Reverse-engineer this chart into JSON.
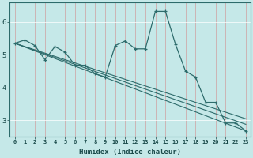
{
  "title": "",
  "xlabel": "Humidex (Indice chaleur)",
  "bg_color": "#c5e8e8",
  "grid_color": "#b0d8d8",
  "line_color": "#2d6b6b",
  "marker_color": "#2d6b6b",
  "xlim": [
    -0.5,
    23.5
  ],
  "ylim": [
    2.5,
    6.6
  ],
  "yticks": [
    3,
    4,
    5,
    6
  ],
  "xticks": [
    0,
    1,
    2,
    3,
    4,
    5,
    6,
    7,
    8,
    9,
    10,
    11,
    12,
    13,
    14,
    15,
    16,
    17,
    18,
    19,
    20,
    21,
    22,
    23
  ],
  "series1_x": [
    0,
    1,
    2,
    3,
    4,
    5,
    6,
    7,
    8,
    9,
    10,
    11,
    12,
    13,
    14,
    15,
    16,
    17,
    18,
    19,
    20,
    21,
    22,
    23
  ],
  "series1_y": [
    5.35,
    5.45,
    5.28,
    4.85,
    5.25,
    5.08,
    4.68,
    4.68,
    4.42,
    4.32,
    5.28,
    5.42,
    5.18,
    5.18,
    6.32,
    6.32,
    5.32,
    4.5,
    4.32,
    3.55,
    3.55,
    2.92,
    2.92,
    2.68
  ],
  "series2_x": [
    0,
    23
  ],
  "series2_y": [
    5.35,
    2.68
  ],
  "series3_x": [
    0,
    23
  ],
  "series3_y": [
    5.35,
    2.88
  ],
  "series4_x": [
    0,
    23
  ],
  "series4_y": [
    5.35,
    3.05
  ]
}
